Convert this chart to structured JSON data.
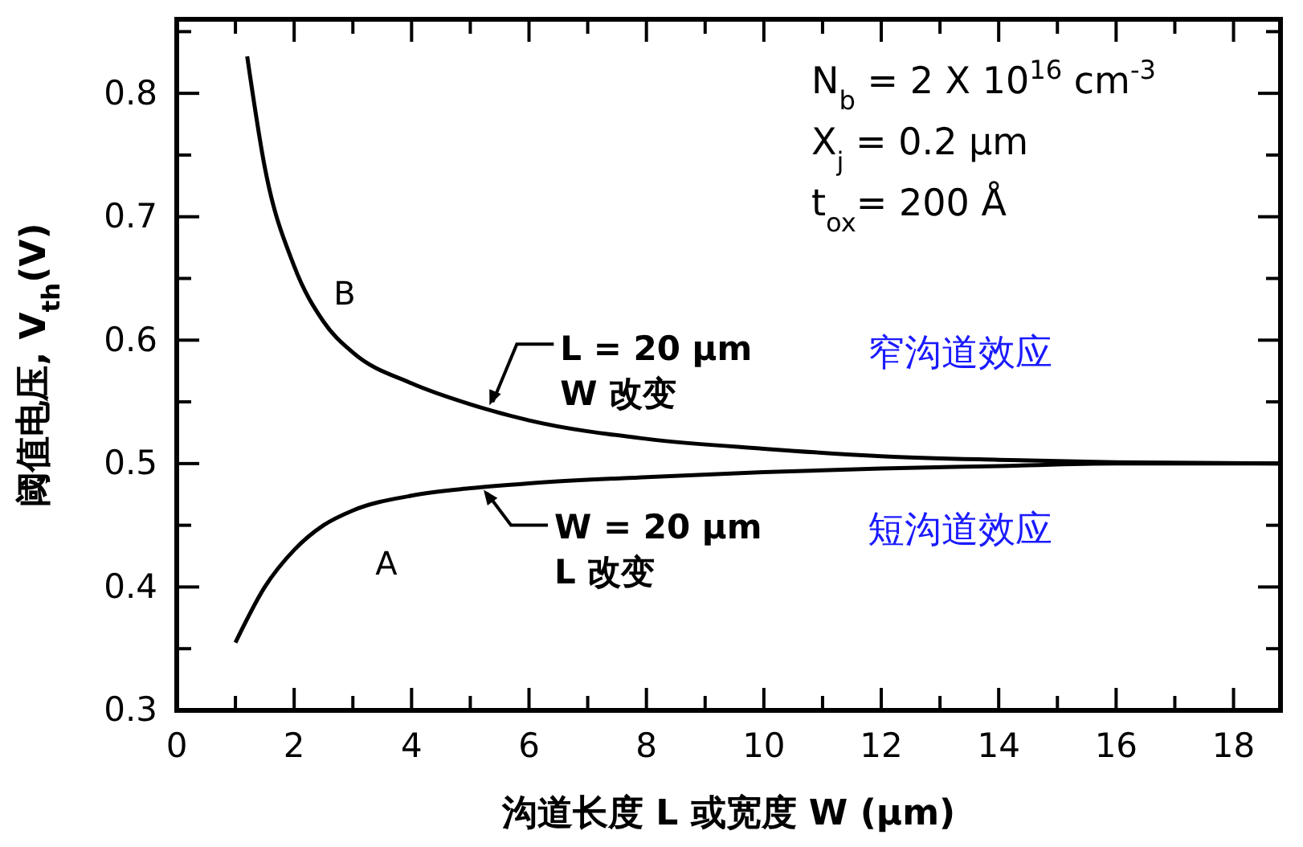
{
  "chart_data": {
    "type": "line",
    "xlabel": "沟道长度 L 或宽度 W (μm)",
    "ylabel": "阈值电压, V$_{th}$(V)",
    "xlim": [
      0,
      18.8
    ],
    "ylim": [
      0.3,
      0.86
    ],
    "xticks": [
      0,
      {
        "value": 1,
        "label": null
      },
      2,
      {
        "value": 3,
        "label": null
      },
      4,
      {
        "value": 5,
        "label": null
      },
      6,
      {
        "value": 7,
        "label": null
      },
      8,
      {
        "value": 9,
        "label": null
      },
      10,
      {
        "value": 11,
        "label": null
      },
      12,
      {
        "value": 13,
        "label": null
      },
      14,
      {
        "value": 15,
        "label": null
      },
      16,
      {
        "value": 17,
        "label": null
      },
      18
    ],
    "yticks": [
      0.3,
      {
        "value": 0.35,
        "label": null
      },
      0.4,
      {
        "value": 0.45,
        "label": null
      },
      0.5,
      {
        "value": 0.55,
        "label": null
      },
      0.6,
      {
        "value": 0.65,
        "label": null
      },
      0.7,
      {
        "value": 0.75,
        "label": null
      },
      0.8,
      {
        "value": 0.85,
        "label": null
      }
    ],
    "grid": false,
    "legend": false,
    "marker": "none",
    "line_style": "solid",
    "series": [
      {
        "name": "B",
        "color": "#000000",
        "x": [
          1.2,
          1.5,
          2,
          2.5,
          3,
          4,
          5,
          6,
          8,
          10,
          12,
          14,
          16,
          18.8
        ],
        "values": [
          0.83,
          0.74,
          0.66,
          0.615,
          0.59,
          0.565,
          0.548,
          0.535,
          0.52,
          0.512,
          0.506,
          0.503,
          0.501,
          0.5
        ]
      },
      {
        "name": "A",
        "color": "#000000",
        "x": [
          1,
          1.5,
          2,
          2.5,
          3,
          4,
          5,
          6,
          8,
          10,
          12,
          14,
          16,
          18.8
        ],
        "values": [
          0.355,
          0.4,
          0.43,
          0.45,
          0.462,
          0.474,
          0.48,
          0.484,
          0.489,
          0.493,
          0.496,
          0.498,
          0.5,
          0.5
        ]
      }
    ],
    "annotations": [
      {
        "text": "L = 20 μm\nW 改变",
        "x": 5.3,
        "y": 0.546
      },
      {
        "text": "W = 20 μm\nL 改变",
        "x": 5.2,
        "y": 0.48
      },
      "窄沟道效应",
      "短沟道效应",
      "N$_{b}$ = 2 X 10$^{16}$ cm$^{-3}$",
      "X$_{j}$ = 0.2 μm",
      "t$_{ox}$= 200 Å"
    ]
  }
}
